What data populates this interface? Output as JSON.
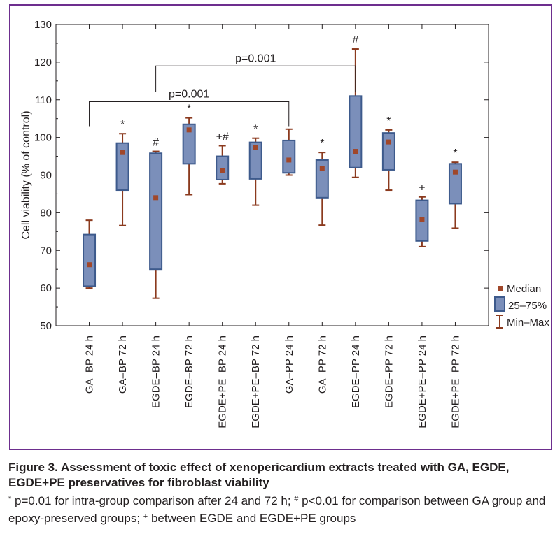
{
  "chart_data": {
    "type": "box",
    "ylabel": "Cell viability (% of control)",
    "ylim": [
      50,
      130
    ],
    "yticks": [
      "50",
      "60",
      "70",
      "80",
      "90",
      "100",
      "110",
      "120",
      "130"
    ],
    "categories": [
      "GA–BP 24 h",
      "GA–BP 72 h",
      "EGDE–BP 24 h",
      "EGDE–BP 72 h",
      "EGDE+PE–BP 24 h",
      "EGDE+PE–BP 72 h",
      "GA–PP 24 h",
      "GA–PP 72 h",
      "EGDE–PP 24 h",
      "EGDE–PP 72 h",
      "EGDE+PE–PP 24 h",
      "EGDE+PE–PP 72 h"
    ],
    "boxes": [
      {
        "min": 60,
        "q1": 60.5,
        "median": 66.2,
        "q3": 74.2,
        "max": 78,
        "label": ""
      },
      {
        "min": 76.6,
        "q1": 86,
        "median": 96,
        "q3": 98.5,
        "max": 101,
        "label": "*"
      },
      {
        "min": 57.3,
        "q1": 65,
        "median": 84,
        "q3": 95.8,
        "max": 96.3,
        "label": "#"
      },
      {
        "min": 84.8,
        "q1": 93,
        "median": 102,
        "q3": 103.5,
        "max": 105.2,
        "label": "*"
      },
      {
        "min": 87.7,
        "q1": 88.8,
        "median": 91.2,
        "q3": 95,
        "max": 97.8,
        "label": "+#"
      },
      {
        "min": 82,
        "q1": 89,
        "median": 97.3,
        "q3": 98.7,
        "max": 99.8,
        "label": "*"
      },
      {
        "min": 90,
        "q1": 90.6,
        "median": 94,
        "q3": 99.2,
        "max": 102.2,
        "label": ""
      },
      {
        "min": 76.7,
        "q1": 84,
        "median": 91.7,
        "q3": 94,
        "max": 96,
        "label": "*"
      },
      {
        "min": 89.4,
        "q1": 92,
        "median": 96.3,
        "q3": 111,
        "max": 123.5,
        "label": "#"
      },
      {
        "min": 86,
        "q1": 91.4,
        "median": 98.8,
        "q3": 101.2,
        "max": 102,
        "label": "*"
      },
      {
        "min": 71,
        "q1": 72.5,
        "median": 78.2,
        "q3": 83.3,
        "max": 84.2,
        "label": "+"
      },
      {
        "min": 75.9,
        "q1": 82.4,
        "median": 90.8,
        "q3": 93,
        "max": 93.4,
        "label": "*"
      }
    ],
    "brackets": [
      {
        "from": 0,
        "to": 6,
        "level": 109.5,
        "drop": 103,
        "label": "p=0.001"
      },
      {
        "from": 2,
        "to": 8,
        "level": 119,
        "drop": 112,
        "label": "p=0.001"
      }
    ],
    "legend": {
      "position": "bottom-right",
      "items": [
        "Median",
        "25–75%",
        "Min–Max"
      ]
    },
    "grid": false
  },
  "colors": {
    "box_fill": "#7b8fba",
    "box_edge": "#3d5a8c",
    "whisker": "#8b3a1e",
    "median": "#a0472a",
    "frame": "#6d2e8e"
  },
  "caption": {
    "title": "Figure 3. Assessment of toxic effect of xenopericardium extracts treated with GA, EGDE, EGDE+PE preservatives for fibroblast viability",
    "note_parts": [
      {
        "sup": "*",
        "text": " p=0.01 for intra-group comparison after 24 and 72 h; "
      },
      {
        "sup": "#",
        "text": " p<0.01 for comparison between GA group and epoxy-preserved groups; "
      },
      {
        "sup": "+",
        "text": " between EGDE and EGDE+PE groups"
      }
    ]
  }
}
